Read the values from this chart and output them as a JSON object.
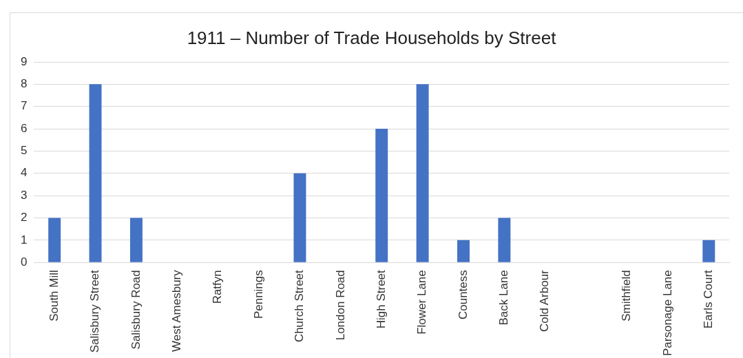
{
  "chart_data": {
    "type": "bar",
    "title": "1911 – Number of Trade Households by Street",
    "categories": [
      "South Mill",
      "Salisbury Street",
      "Salisbury Road",
      "West Amesbury",
      "Ratfyn",
      "Pennings",
      "Church Street",
      "London Road",
      "High Street",
      "Flower Lane",
      "Countess",
      "Back Lane",
      "Cold Arbour",
      null,
      "Smithfield",
      "Parsonage Lane",
      "Earls Court"
    ],
    "values": [
      2,
      8,
      2,
      0,
      0,
      0,
      4,
      0,
      6,
      8,
      1,
      2,
      0,
      0,
      0,
      0,
      1
    ],
    "color": "#4472c4",
    "ylim": [
      0,
      9
    ],
    "yticks": [
      0,
      1,
      2,
      3,
      4,
      5,
      6,
      7,
      8,
      9
    ],
    "grid": "y"
  }
}
